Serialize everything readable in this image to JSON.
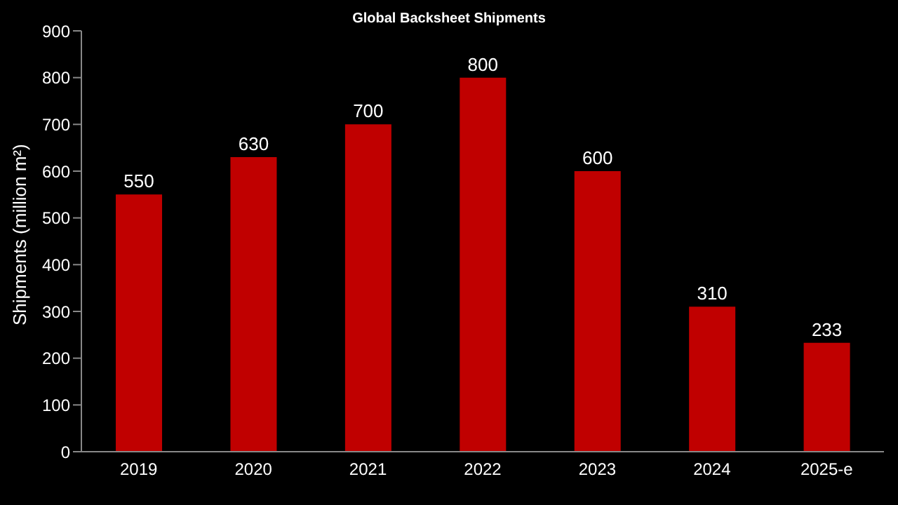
{
  "chart_data": {
    "type": "bar",
    "title": "Global Backsheet Shipments",
    "ylabel": "Shipments (million m²)",
    "categories": [
      "2019",
      "2020",
      "2021",
      "2022",
      "2023",
      "2024",
      "2025-e"
    ],
    "values": [
      550,
      630,
      700,
      800,
      600,
      310,
      233
    ],
    "color": "#c00000",
    "ylim": [
      0,
      900
    ],
    "yticks": [
      0,
      100,
      200,
      300,
      400,
      500,
      600,
      700,
      800,
      900
    ],
    "grid": false,
    "data_labels": true
  }
}
